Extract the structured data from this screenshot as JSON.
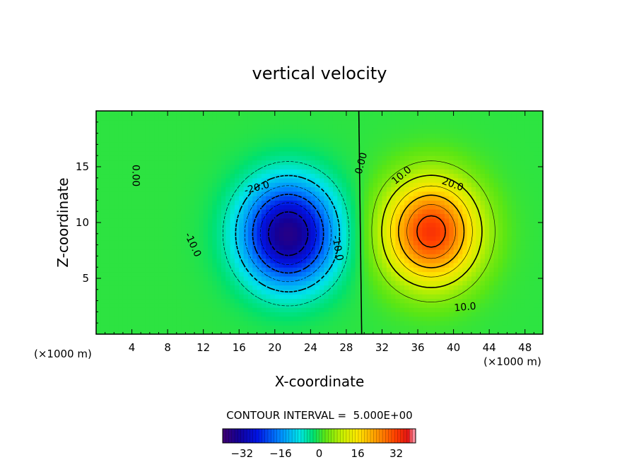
{
  "chart_data": {
    "type": "heatmap",
    "title": "vertical velocity",
    "xlabel": "X-coordinate",
    "ylabel": "Z-coordinate",
    "x_unit": "(×1000 m)",
    "z_unit": "(×1000 m)",
    "xlim": [
      0,
      50
    ],
    "ylim": [
      0,
      20
    ],
    "x_ticks": [
      4,
      8,
      12,
      16,
      20,
      24,
      28,
      32,
      36,
      40,
      44,
      48
    ],
    "y_ticks": [
      5,
      10,
      15
    ],
    "contour_interval_label": "CONTOUR INTERVAL =  5.000E+00",
    "contour_labels": [
      {
        "text": "0.00",
        "x": 4.4,
        "z": 14.2,
        "rotate": 90
      },
      {
        "text": "0.00",
        "x": 29.7,
        "z": 15.3,
        "rotate": -75
      },
      {
        "text": "-20.0",
        "x": 18.0,
        "z": 13.1,
        "rotate": -15
      },
      {
        "text": "-10.0",
        "x": 10.8,
        "z": 8.0,
        "rotate": 65
      },
      {
        "text": "-10.0",
        "x": 27.0,
        "z": 7.7,
        "rotate": 80
      },
      {
        "text": "10.0",
        "x": 34.2,
        "z": 14.2,
        "rotate": -40
      },
      {
        "text": "20.0",
        "x": 39.9,
        "z": 13.4,
        "rotate": 20
      },
      {
        "text": "10.0",
        "x": 41.3,
        "z": 2.4,
        "rotate": -5
      }
    ],
    "fields": [
      {
        "sign": -1,
        "amplitude": 36,
        "center_x": 21.5,
        "center_z": 9.0,
        "sigma_x": 5.2,
        "sigma_z": 4.6
      },
      {
        "sign": 1,
        "amplitude": 33,
        "center_x": 37.5,
        "center_z": 9.2,
        "sigma_x": 5.2,
        "sigma_z": 4.6
      }
    ],
    "contour_levels": [
      -30,
      -25,
      -20,
      -15,
      -10,
      -5,
      0,
      5,
      10,
      15,
      20,
      25,
      30
    ],
    "colorbar": {
      "min": -40,
      "max": 40,
      "tick_values": [
        -32,
        -16,
        0,
        16,
        32
      ],
      "tick_labels": [
        "−32",
        "−16",
        "0",
        "16",
        "32"
      ]
    }
  }
}
